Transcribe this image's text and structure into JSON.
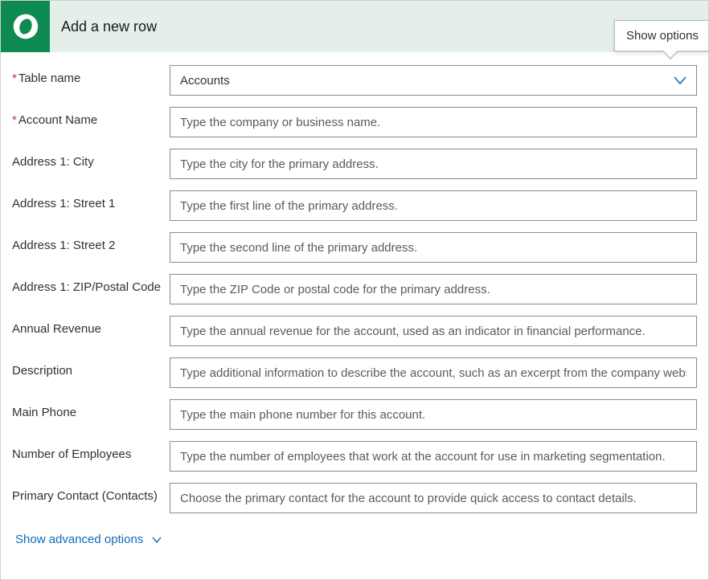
{
  "header": {
    "title": "Add a new row",
    "show_options": "Show options",
    "logo_bg": "#0d8a52",
    "header_bg": "#e4efe9"
  },
  "table_select": {
    "label": "Table name",
    "required": true,
    "value": "Accounts"
  },
  "fields": [
    {
      "label": "Account Name",
      "required": true,
      "placeholder": "Type the company or business name."
    },
    {
      "label": "Address 1: City",
      "required": false,
      "placeholder": "Type the city for the primary address."
    },
    {
      "label": "Address 1: Street 1",
      "required": false,
      "placeholder": "Type the first line of the primary address."
    },
    {
      "label": "Address 1: Street 2",
      "required": false,
      "placeholder": "Type the second line of the primary address."
    },
    {
      "label": "Address 1: ZIP/Postal Code",
      "required": false,
      "placeholder": "Type the ZIP Code or postal code for the primary address."
    },
    {
      "label": "Annual Revenue",
      "required": false,
      "placeholder": "Type the annual revenue for the account, used as an indicator in financial performance."
    },
    {
      "label": "Description",
      "required": false,
      "placeholder": "Type additional information to describe the account, such as an excerpt from the company website."
    },
    {
      "label": "Main Phone",
      "required": false,
      "placeholder": "Type the main phone number for this account."
    },
    {
      "label": "Number of Employees",
      "required": false,
      "placeholder": "Type the number of employees that work at the account for use in marketing segmentation."
    },
    {
      "label": "Primary Contact (Contacts)",
      "required": false,
      "placeholder": "Choose the primary contact for the account to provide quick access to contact details."
    }
  ],
  "advanced_link": "Show advanced options",
  "colors": {
    "link": "#0f6cbd",
    "border": "#8a8a8a",
    "required": "#c0392b"
  }
}
